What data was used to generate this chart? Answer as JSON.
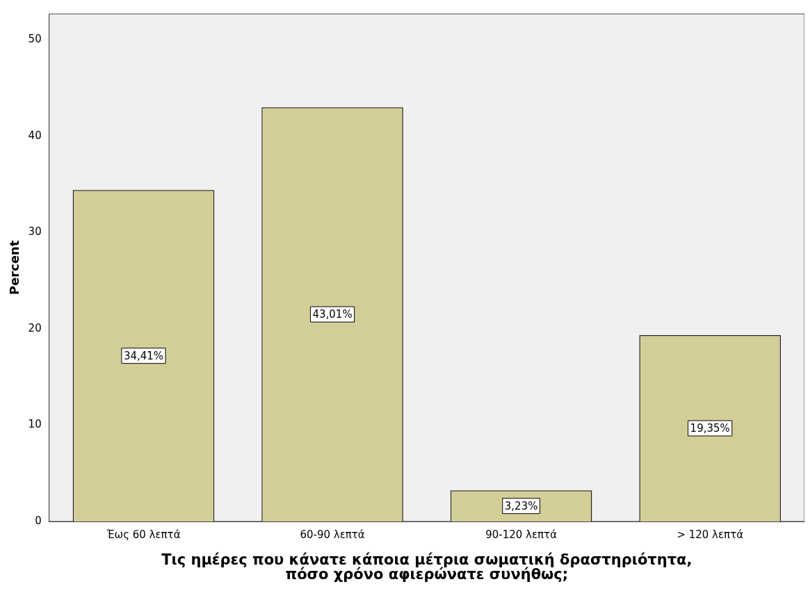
{
  "chart_data": {
    "type": "bar",
    "categories": [
      "Έως 60 λεπτά",
      "60-90 λεπτά",
      "90-120 λεπτά",
      "> 120 λεπτά"
    ],
    "values": [
      34.41,
      43.01,
      3.23,
      19.35
    ],
    "value_labels": [
      "34,41%",
      "43,01%",
      "3,23%",
      "19,35%"
    ],
    "color": "#d3ce97",
    "ylabel": "Percent",
    "xlabel": "Τις ημέρες που κάνατε κάποια μέτρια σωματική δραστηριότητα,\nπόσο χρόνο αφιερώνατε συνήθως;",
    "ylim": [
      0,
      52.7
    ],
    "yticks": [
      0,
      10,
      20,
      30,
      40,
      50
    ],
    "grid": false,
    "legend": false
  }
}
